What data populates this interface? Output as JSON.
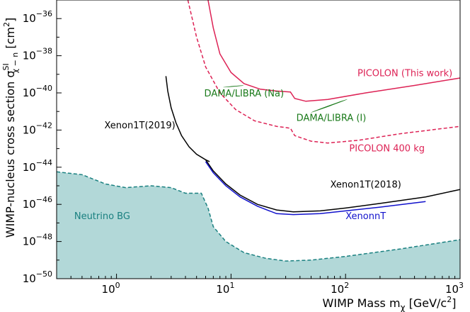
{
  "chart_data": {
    "type": "line",
    "x_scale": "log",
    "y_scale": "log",
    "xlim": [
      0.3,
      1000
    ],
    "ylim": [
      1e-50,
      1e-35
    ],
    "xlabel": "WIMP Mass m",
    "xlabel_sub": "χ",
    "xlabel_unit": " [GeV/c",
    "xlabel_sup": "2",
    "xlabel_end": "]",
    "ylabel": "WIMP-nucleus cross section σ",
    "ylabel_sup": "SI",
    "ylabel_sub": "χ − n",
    "ylabel_unit": " [cm",
    "ylabel_unit_sup": "2",
    "ylabel_end": "]",
    "x_ticks": [
      {
        "value": 1,
        "base": "10",
        "exp": "0"
      },
      {
        "value": 10,
        "base": "10",
        "exp": "1"
      },
      {
        "value": 100,
        "base": "10",
        "exp": "2"
      },
      {
        "value": 1000,
        "base": "10",
        "exp": "3"
      }
    ],
    "y_ticks": [
      {
        "exp_value": -36,
        "base": "10",
        "exp": "−36"
      },
      {
        "exp_value": -38,
        "base": "10",
        "exp": "−38"
      },
      {
        "exp_value": -40,
        "base": "10",
        "exp": "−40"
      },
      {
        "exp_value": -42,
        "base": "10",
        "exp": "−42"
      },
      {
        "exp_value": -44,
        "base": "10",
        "exp": "−44"
      },
      {
        "exp_value": -46,
        "base": "10",
        "exp": "−46"
      },
      {
        "exp_value": -48,
        "base": "10",
        "exp": "−48"
      },
      {
        "exp_value": -50,
        "base": "10",
        "exp": "−50"
      }
    ],
    "series": [
      {
        "name": "Neutrino BG",
        "style": "filled-dashed",
        "color": "#1a8080",
        "fill": "#b2d8d8",
        "points": [
          [
            0.3,
            -44.25
          ],
          [
            0.5,
            -44.4
          ],
          [
            0.8,
            -44.9
          ],
          [
            1.2,
            -45.1
          ],
          [
            2,
            -45.0
          ],
          [
            3,
            -45.1
          ],
          [
            4,
            -45.4
          ],
          [
            5.5,
            -45.4
          ],
          [
            6.3,
            -46.2
          ],
          [
            7,
            -47.2
          ],
          [
            9,
            -48.0
          ],
          [
            13,
            -48.6
          ],
          [
            20,
            -48.9
          ],
          [
            30,
            -49.05
          ],
          [
            50,
            -49.0
          ],
          [
            100,
            -48.8
          ],
          [
            300,
            -48.4
          ],
          [
            1000,
            -47.9
          ]
        ]
      },
      {
        "name": "Xenon1T(2019)",
        "style": "solid",
        "color": "#000000",
        "points": [
          [
            2.7,
            -39.1
          ],
          [
            2.8,
            -39.9
          ],
          [
            3,
            -40.8
          ],
          [
            3.3,
            -41.6
          ],
          [
            3.7,
            -42.3
          ],
          [
            4.3,
            -42.9
          ],
          [
            5,
            -43.3
          ],
          [
            6,
            -43.6
          ],
          [
            6.5,
            -43.7
          ]
        ]
      },
      {
        "name": "Xenon1T(2018)",
        "style": "solid",
        "color": "#000000",
        "points": [
          [
            6,
            -43.6
          ],
          [
            7,
            -44.2
          ],
          [
            9,
            -44.9
          ],
          [
            12,
            -45.5
          ],
          [
            17,
            -46.0
          ],
          [
            25,
            -46.3
          ],
          [
            35,
            -46.4
          ],
          [
            60,
            -46.35
          ],
          [
            100,
            -46.2
          ],
          [
            200,
            -45.95
          ],
          [
            500,
            -45.6
          ],
          [
            1000,
            -45.2
          ]
        ]
      },
      {
        "name": "XenonnT",
        "style": "solid",
        "color": "#1111cc",
        "points": [
          [
            6,
            -43.7
          ],
          [
            7,
            -44.3
          ],
          [
            9,
            -45.0
          ],
          [
            12,
            -45.6
          ],
          [
            17,
            -46.1
          ],
          [
            25,
            -46.5
          ],
          [
            35,
            -46.55
          ],
          [
            60,
            -46.5
          ],
          [
            100,
            -46.35
          ],
          [
            200,
            -46.15
          ],
          [
            500,
            -45.85
          ]
        ]
      },
      {
        "name": "PICOLON (This work)",
        "style": "solid",
        "color": "#dd2255",
        "points": [
          [
            6.3,
            -35.0
          ],
          [
            7,
            -36.5
          ],
          [
            8,
            -37.9
          ],
          [
            10,
            -38.9
          ],
          [
            13,
            -39.5
          ],
          [
            18,
            -39.8
          ],
          [
            25,
            -39.9
          ],
          [
            33,
            -39.95
          ],
          [
            36,
            -40.3
          ],
          [
            45,
            -40.45
          ],
          [
            70,
            -40.35
          ],
          [
            150,
            -40.0
          ],
          [
            400,
            -39.6
          ],
          [
            1000,
            -39.2
          ]
        ]
      },
      {
        "name": "PICOLON 400 kg",
        "style": "dashed",
        "color": "#dd2255",
        "points": [
          [
            4.2,
            -35.0
          ],
          [
            5,
            -37.0
          ],
          [
            6,
            -38.6
          ],
          [
            8,
            -40.0
          ],
          [
            11,
            -40.9
          ],
          [
            16,
            -41.5
          ],
          [
            25,
            -41.8
          ],
          [
            33,
            -41.9
          ],
          [
            36,
            -42.3
          ],
          [
            50,
            -42.6
          ],
          [
            70,
            -42.7
          ],
          [
            130,
            -42.55
          ],
          [
            300,
            -42.2
          ],
          [
            1000,
            -41.8
          ]
        ]
      }
    ],
    "regions": [
      {
        "name": "DAMA/LIBRA (Na)",
        "color": "#1a7a1a",
        "center": [
          10.5,
          -39.65
        ],
        "rx_log": 0.09,
        "ry_log": 0.14,
        "angle": -5
      },
      {
        "name": "DAMA/LIBRA (I)",
        "color": "#1a7a1a",
        "center": [
          72,
          -40.7
        ],
        "rx_log": 0.17,
        "ry_log": 0.2,
        "angle": -20
      }
    ],
    "annotations": [
      {
        "text": "PICOLON (This work)",
        "color": "#dd2255",
        "x": 330,
        "y": -39.1
      },
      {
        "text": "DAMA/LIBRA (Na)",
        "color": "#1a7a1a",
        "x": 13,
        "y": -40.2
      },
      {
        "text": "DAMA/LIBRA (I)",
        "color": "#1a7a1a",
        "x": 75,
        "y": -41.5
      },
      {
        "text": "Xenon1T(2019)",
        "color": "#000000",
        "x": 1.6,
        "y": -41.9
      },
      {
        "text": "PICOLON 400 kg",
        "color": "#dd2255",
        "x": 230,
        "y": -43.15
      },
      {
        "text": "Xenon1T(2018)",
        "color": "#000000",
        "x": 150,
        "y": -45.1
      },
      {
        "text": "XenonnT",
        "color": "#1111cc",
        "x": 150,
        "y": -46.8
      },
      {
        "text": "Neutrino BG",
        "color": "#1a8080",
        "x": 0.75,
        "y": -46.8
      }
    ],
    "grid": false
  }
}
